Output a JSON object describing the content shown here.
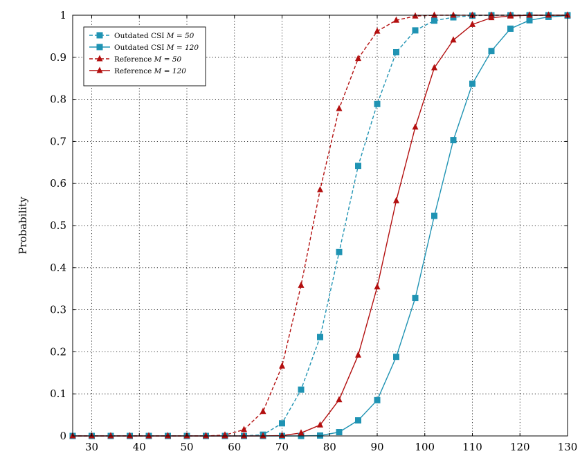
{
  "chart_data": {
    "type": "line",
    "title": "",
    "xlabel": "",
    "ylabel": "Probability",
    "xlim": [
      26,
      130
    ],
    "ylim": [
      0,
      1
    ],
    "xticks": [
      30,
      40,
      50,
      60,
      70,
      80,
      90,
      100,
      110,
      120,
      130
    ],
    "yticks": [
      0,
      0.1,
      0.2,
      0.3,
      0.4,
      0.5,
      0.6,
      0.7,
      0.8,
      0.9,
      1
    ],
    "grid": true,
    "legend_position": "top-left",
    "series": [
      {
        "name": "Outdated CSI M = 50",
        "legend_text": "Outdated CSI ",
        "legend_math": "M = 50",
        "color": "#1f93b3",
        "line_style": "dashed",
        "marker": "square",
        "x": [
          26,
          30,
          34,
          38,
          42,
          46,
          50,
          54,
          58,
          62,
          66,
          70,
          74,
          78,
          82,
          86,
          90,
          94,
          98,
          102,
          106,
          110,
          114,
          118,
          122,
          126,
          130
        ],
        "y": [
          0,
          0,
          0,
          0,
          0,
          0,
          0,
          0,
          0,
          0,
          0.003,
          0.03,
          0.11,
          0.235,
          0.437,
          0.642,
          0.789,
          0.912,
          0.964,
          0.987,
          0.995,
          0.999,
          1,
          1,
          1,
          1,
          1
        ]
      },
      {
        "name": "Outdated CSI M = 120",
        "legend_text": "Outdated CSI ",
        "legend_math": "M = 120",
        "color": "#1f93b3",
        "line_style": "solid",
        "marker": "square",
        "x": [
          26,
          30,
          34,
          38,
          42,
          46,
          50,
          54,
          58,
          62,
          66,
          70,
          74,
          78,
          82,
          86,
          90,
          94,
          98,
          102,
          106,
          110,
          114,
          118,
          122,
          126,
          130
        ],
        "y": [
          0,
          0,
          0,
          0,
          0,
          0,
          0,
          0,
          0,
          0,
          0,
          0,
          0,
          0.001,
          0.009,
          0.037,
          0.085,
          0.188,
          0.328,
          0.523,
          0.703,
          0.837,
          0.915,
          0.968,
          0.988,
          0.996,
          0.999
        ]
      },
      {
        "name": "Reference M = 50",
        "legend_text": "Reference ",
        "legend_math": "M = 50",
        "color": "#b30f0f",
        "line_style": "dashed",
        "marker": "triangle",
        "x": [
          26,
          30,
          34,
          38,
          42,
          46,
          50,
          54,
          58,
          62,
          66,
          70,
          74,
          78,
          82,
          86,
          90,
          94,
          98,
          102,
          106,
          110,
          114,
          118,
          122,
          126,
          130
        ],
        "y": [
          0,
          0,
          0,
          0,
          0,
          0,
          0,
          0,
          0.002,
          0.015,
          0.058,
          0.166,
          0.358,
          0.585,
          0.778,
          0.897,
          0.962,
          0.988,
          0.998,
          1,
          1,
          1,
          1,
          1,
          1,
          1,
          1
        ]
      },
      {
        "name": "Reference M = 120",
        "legend_text": "Reference ",
        "legend_math": "M = 120",
        "color": "#b30f0f",
        "line_style": "solid",
        "marker": "triangle",
        "x": [
          26,
          30,
          34,
          38,
          42,
          46,
          50,
          54,
          58,
          62,
          66,
          70,
          74,
          78,
          82,
          86,
          90,
          94,
          98,
          102,
          106,
          110,
          114,
          118,
          122,
          126,
          130
        ],
        "y": [
          0,
          0,
          0,
          0,
          0,
          0,
          0,
          0,
          0,
          0,
          0,
          0.001,
          0.007,
          0.026,
          0.086,
          0.192,
          0.354,
          0.559,
          0.734,
          0.875,
          0.941,
          0.978,
          0.994,
          0.998,
          1,
          1,
          1
        ]
      }
    ]
  }
}
